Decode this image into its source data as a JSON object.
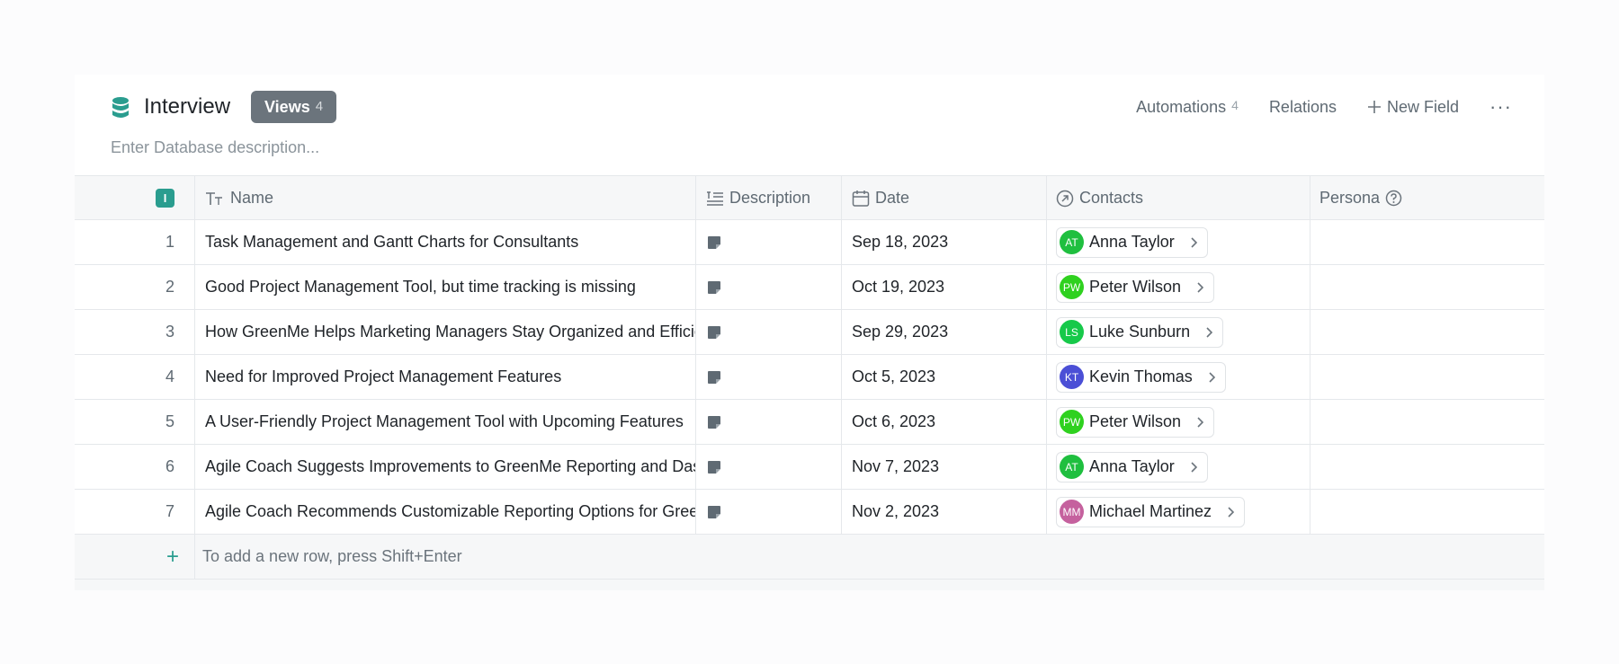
{
  "header": {
    "title": "Interview",
    "views_label": "Views",
    "views_count": "4",
    "description_placeholder": "Enter Database description...",
    "automations_label": "Automations",
    "automations_count": "4",
    "relations_label": "Relations",
    "new_field_label": "New Field",
    "more_label": "···"
  },
  "columns": {
    "select_all": "I",
    "name": "Name",
    "description": "Description",
    "date": "Date",
    "contacts": "Contacts",
    "persona": "Persona"
  },
  "rows": [
    {
      "index": "1",
      "name": "Task Management and Gantt Charts for Consultants",
      "date": "Sep 18, 2023",
      "contact": {
        "initials": "AT",
        "name": "Anna Taylor",
        "color": "#1fbf3f"
      }
    },
    {
      "index": "2",
      "name": "Good Project Management Tool, but time tracking is missing",
      "date": "Oct 19, 2023",
      "contact": {
        "initials": "PW",
        "name": "Peter Wilson",
        "color": "#2fd11f"
      }
    },
    {
      "index": "3",
      "name": "How GreenMe Helps Marketing Managers Stay Organized and Efficient",
      "date": "Sep 29, 2023",
      "contact": {
        "initials": "LS",
        "name": "Luke Sunburn",
        "color": "#17c94a"
      }
    },
    {
      "index": "4",
      "name": "Need for Improved Project Management Features",
      "date": "Oct 5, 2023",
      "contact": {
        "initials": "KT",
        "name": "Kevin Thomas",
        "color": "#4b4fd6"
      }
    },
    {
      "index": "5",
      "name": "A User-Friendly Project Management Tool with Upcoming Features",
      "date": "Oct 6, 2023",
      "contact": {
        "initials": "PW",
        "name": "Peter Wilson",
        "color": "#2fd11f"
      }
    },
    {
      "index": "6",
      "name": "Agile Coach Suggests Improvements to GreenMe Reporting and Dashboards",
      "date": "Nov 7, 2023",
      "contact": {
        "initials": "AT",
        "name": "Anna Taylor",
        "color": "#1fbf3f"
      }
    },
    {
      "index": "7",
      "name": "Agile Coach Recommends Customizable Reporting Options for GreenMe",
      "date": "Nov 2, 2023",
      "contact": {
        "initials": "MM",
        "name": "Michael Martinez",
        "color": "#c5619e"
      }
    }
  ],
  "add_row": {
    "plus": "+",
    "hint": "To add a new row, press Shift+Enter"
  },
  "colors": {
    "accent": "#2a9d8f",
    "views_bg": "#6b747c"
  }
}
